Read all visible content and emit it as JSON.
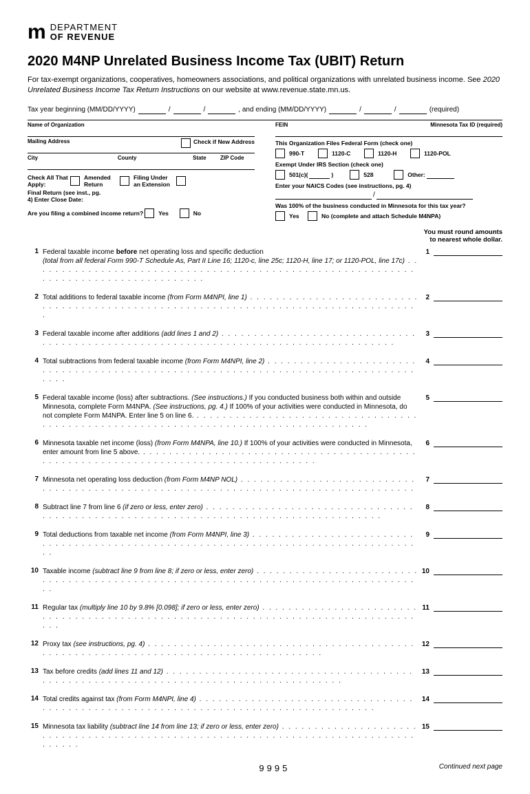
{
  "logo": {
    "mark": "m",
    "line1": "DEPARTMENT",
    "line2": "OF REVENUE"
  },
  "title": "2020 M4NP Unrelated Business Income Tax (UBIT) Return",
  "subtitle_a": "For tax-exempt organizations, cooperatives, homeowners associations, and political organizations with unrelated business income. See ",
  "subtitle_em": "2020 Unrelated Business Income Tax Return Instructions",
  "subtitle_b": " on our website at www.revenue.state.mn.us.",
  "tax_year": {
    "begin_label": "Tax year beginning (MM/DD/YYYY)",
    "end_label": ", and ending (MM/DD/YYYY)",
    "required": "(required)"
  },
  "org_info": {
    "name": "Name of Organization",
    "fein": "FEIN",
    "mn_tax_id": "Minnesota Tax ID (required)",
    "mailing": "Mailing Address",
    "check_new": "Check if New Address",
    "city": "City",
    "county": "County",
    "state": "State",
    "zip": "ZIP Code",
    "check_all": "Check All That Apply:",
    "amended": "Amended Return",
    "filing_ext": "Filing Under an Extension",
    "final": "Final Return (see inst., pg. 4) Enter Close Date:",
    "combined_q": "Are you filing a combined income return?",
    "yes": "Yes",
    "no": "No"
  },
  "fed_form": {
    "title": "This Organization Files Federal Form (check one)",
    "opt1": "990-T",
    "opt2": "1120-C",
    "opt3": "1120-H",
    "opt4": "1120-POL"
  },
  "exempt": {
    "title": "Exempt Under IRS Section (check one)",
    "opt1": "501(c)(",
    "opt1b": ")",
    "opt2": "528",
    "opt3": "Other:"
  },
  "naics": "Enter your NAICS Codes (see instructions, pg. 4)",
  "mn_100": {
    "q": "Was 100% of the business conducted in Minnesota for this tax year?",
    "yes": "Yes",
    "no": "No (complete and attach Schedule M4NPA)"
  },
  "round_note_a": "You must round amounts",
  "round_note_b": "to nearest whole dollar.",
  "lines": [
    {
      "n": "1",
      "text_a": "Federal taxable income ",
      "bold": "before",
      "text_b": " net operating loss and specific deduction",
      "em": "(total from all federal Form 990-T Schedule As, Part II Line 16; 1120-c, line 25c; 1120-H, line 17; or 1120-POL, line 17c)"
    },
    {
      "n": "2",
      "text_a": "Total additions to federal taxable income ",
      "em": "(from Form M4NPI, line 1)"
    },
    {
      "n": "3",
      "text_a": "Federal taxable income after additions ",
      "em": "(add lines 1 and 2)"
    },
    {
      "n": "4",
      "text_a": "Total subtractions from federal taxable income ",
      "em": "(from Form M4NPI, line 2)"
    },
    {
      "n": "5",
      "text_a": "Federal taxable income (loss) after subtractions. ",
      "em": "(See instructions.)",
      "text_b": " If you conducted business both within and outside Minnesota, complete Form M4NPA. ",
      "em2": "(See instructions, pg. 4.)",
      "text_c": " If 100% of your activities were conducted in Minnesota, do not complete Form M4NPA. Enter line 5 on line 6."
    },
    {
      "n": "6",
      "text_a": "Minnesota taxable net income (loss) ",
      "em": "(from Form M4NPA, line 10.)",
      "text_b": " If 100% of your activities were conducted in Minnesota, enter amount from line 5 above."
    },
    {
      "n": "7",
      "text_a": "Minnesota net operating loss deduction ",
      "em": "(from Form M4NP NOL)"
    },
    {
      "n": "8",
      "text_a": "Subtract line 7 from line 6 ",
      "em": "(if zero or less, enter zero)"
    },
    {
      "n": "9",
      "text_a": "Total deductions from taxable net income ",
      "em": "(from Form M4NPI, line 3)"
    },
    {
      "n": "10",
      "text_a": "Taxable income ",
      "em": "(subtract line 9 from line 8; if zero or less, enter zero)"
    },
    {
      "n": "11",
      "text_a": "Regular tax ",
      "em": "(multiply line 10 by 9.8% [0.098]; if zero or less, enter zero)"
    },
    {
      "n": "12",
      "text_a": "Proxy tax ",
      "em": "(see instructions, pg. 4)"
    },
    {
      "n": "13",
      "text_a": "Tax before credits ",
      "em": "(add lines 11 and 12)"
    },
    {
      "n": "14",
      "text_a": "Total credits against tax ",
      "em": "(from Form M4NPI, line 4)"
    },
    {
      "n": "15",
      "text_a": "Minnesota tax liability ",
      "em": "(subtract line 14 from line 13; if zero or less, enter zero)"
    }
  ],
  "footer": {
    "code": "9995",
    "continued": "Continued next page"
  }
}
